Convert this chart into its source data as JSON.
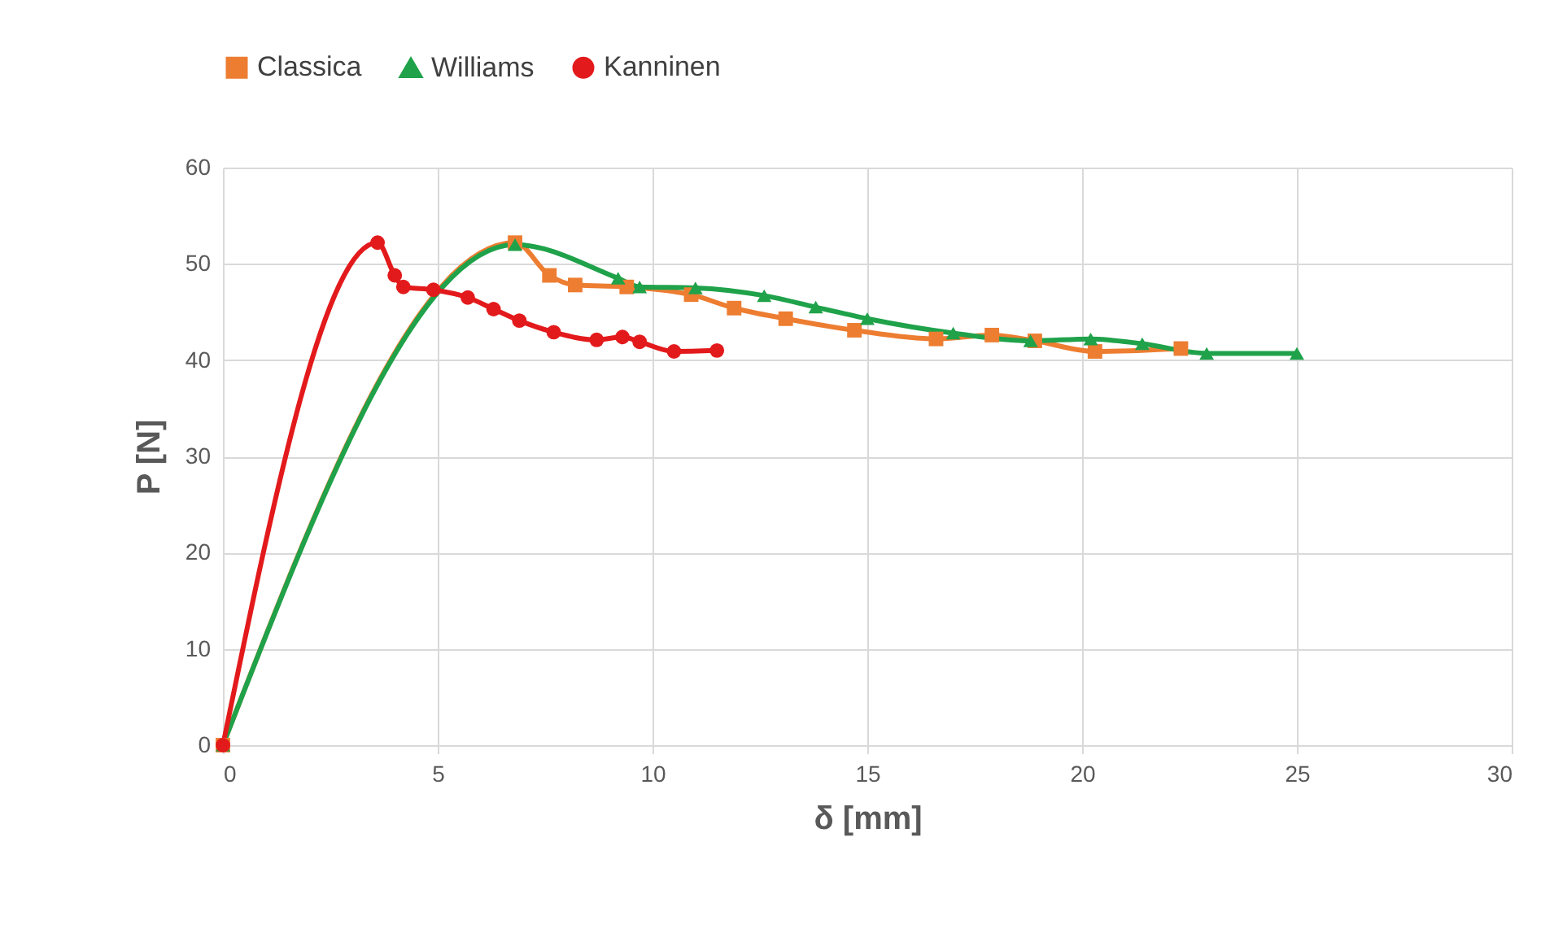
{
  "chart_data": {
    "type": "line",
    "xlabel": "δ [mm]",
    "ylabel": "P [N]",
    "xlim": [
      0,
      30
    ],
    "xticks": [
      0,
      5,
      10,
      15,
      20,
      25,
      30
    ],
    "ylim": [
      0,
      60
    ],
    "yticks": [
      0,
      10,
      20,
      30,
      40,
      50,
      60
    ],
    "grid": true,
    "legend": "top",
    "series": [
      {
        "name": "Classica",
        "color": "#ed7d31",
        "marker": "square",
        "x": [
          0,
          6.8,
          7.6,
          8.2,
          9.4,
          10.9,
          11.9,
          13.1,
          14.7,
          16.6,
          17.9,
          18.9,
          20.3,
          22.3
        ],
        "values": [
          0,
          52.2,
          48.8,
          47.8,
          47.6,
          46.8,
          45.4,
          44.3,
          43.1,
          42.2,
          42.6,
          42,
          40.9,
          41.2
        ]
      },
      {
        "name": "Williams",
        "color": "#1fa24a",
        "marker": "triangle",
        "x": [
          0,
          6.8,
          9.2,
          9.7,
          11,
          12.6,
          13.8,
          15,
          17,
          18.8,
          20.2,
          21.4,
          22.9,
          25
        ],
        "values": [
          0,
          52,
          48.5,
          47.6,
          47.5,
          46.7,
          45.5,
          44.3,
          42.8,
          42,
          42.2,
          41.7,
          40.7,
          40.7
        ]
      },
      {
        "name": "Kanninen",
        "color": "#e31a1c",
        "marker": "circle",
        "x": [
          0,
          3.6,
          4,
          4.2,
          4.9,
          5.7,
          6.3,
          6.9,
          7.7,
          8.7,
          9.3,
          9.7,
          10.5,
          11.5
        ],
        "values": [
          0,
          52.2,
          48.8,
          47.6,
          47.3,
          46.5,
          45.3,
          44.1,
          42.9,
          42.1,
          42.4,
          41.9,
          40.9,
          41
        ]
      }
    ]
  }
}
